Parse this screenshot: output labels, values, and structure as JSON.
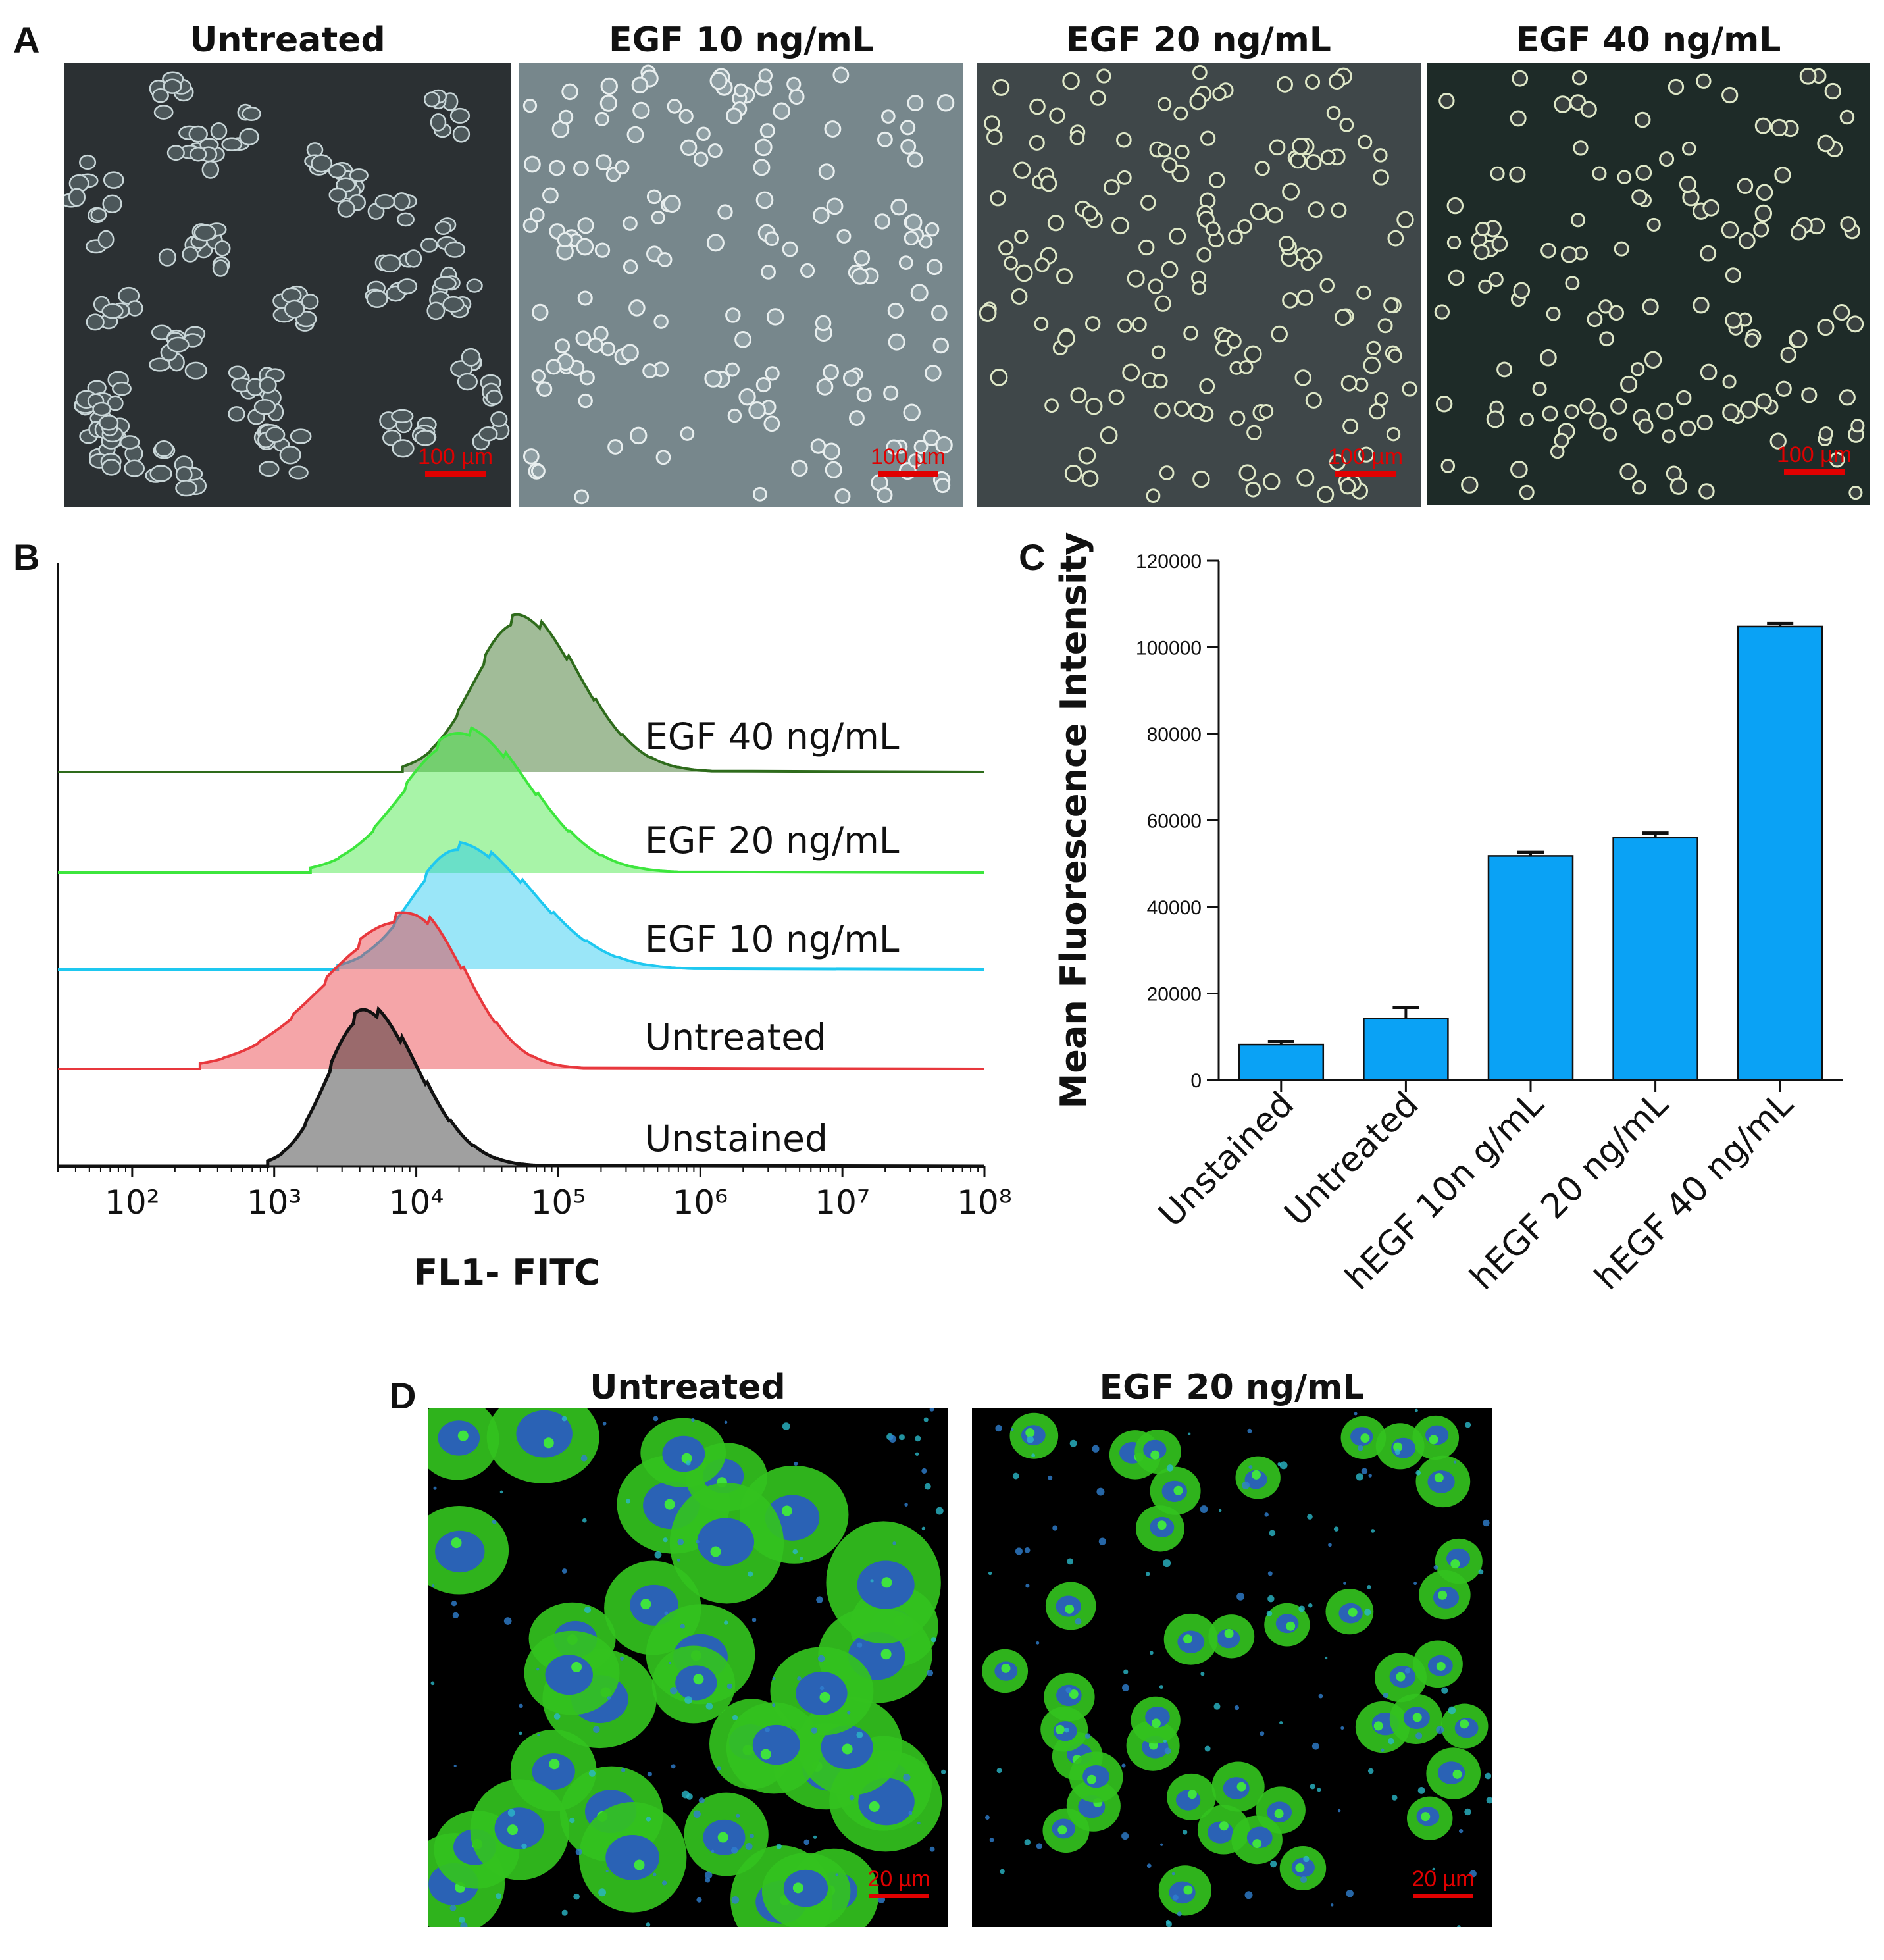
{
  "panels": {
    "a": {
      "letter": "A",
      "scale_bar": "100 µm",
      "images": [
        {
          "title": "Untreated",
          "bg": "#2b3033",
          "cell_style": "epithelial"
        },
        {
          "title": "EGF 10 ng/mL",
          "bg": "#77878c",
          "cell_style": "round"
        },
        {
          "title": "EGF 20 ng/mL",
          "bg": "#3f4749",
          "cell_style": "round"
        },
        {
          "title": "EGF 40 ng/mL",
          "bg": "#1e2b28",
          "cell_style": "round"
        }
      ]
    },
    "b": {
      "letter": "B"
    },
    "c": {
      "letter": "C"
    },
    "d": {
      "letter": "D",
      "scale_bar": "20 µm",
      "images": [
        {
          "title": "Untreated",
          "cell_style": "large"
        },
        {
          "title": "EGF 20 ng/mL",
          "cell_style": "small"
        }
      ]
    }
  },
  "colors": {
    "egf40": "#2e6b1b",
    "egf20": "#3de63d",
    "egf10": "#1ec8f0",
    "untreated": "#e8383d",
    "unstained": "#111111",
    "bar_fill": "#0aa2f5",
    "scale_red": "#e00000",
    "confocal_green": "#33c21e",
    "confocal_blue": "#2a62b5"
  },
  "chart_data": [
    {
      "type": "area",
      "panel": "B",
      "title": "",
      "xlabel": "FL1- FITC",
      "ylabel": "",
      "x_scale": "log",
      "xlim": [
        30,
        100000000
      ],
      "x_tick_labels": [
        "10²",
        "10³",
        "10⁴",
        "10⁵",
        "10⁶",
        "10⁷",
        "10⁸"
      ],
      "x_ticks": [
        100,
        1000,
        10000,
        100000,
        1000000,
        10000000,
        100000000
      ],
      "layout": "offset histograms (stacked overlays)",
      "series": [
        {
          "name": "EGF 40 ng/mL",
          "color_key": "egf40",
          "peak": 55000,
          "range": [
            8000,
            1200000
          ]
        },
        {
          "name": "EGF 20 ng/mL",
          "color_key": "egf20",
          "peak": 22000,
          "range": [
            1800,
            700000
          ]
        },
        {
          "name": "EGF 10 ng/mL",
          "color_key": "egf10",
          "peak": 21000,
          "range": [
            2800,
            900000
          ]
        },
        {
          "name": "Untreated",
          "color_key": "untreated",
          "peak": 9500,
          "range": [
            300,
            150000
          ]
        },
        {
          "name": "Unstained",
          "color_key": "unstained",
          "peak": 4500,
          "range": [
            900,
            70000
          ]
        }
      ]
    },
    {
      "type": "bar",
      "panel": "C",
      "title": "",
      "xlabel": "",
      "ylabel": "Mean Fluorescence Intensity",
      "ylim": [
        0,
        120000
      ],
      "y_ticks": [
        0,
        20000,
        40000,
        60000,
        80000,
        100000,
        120000
      ],
      "categories": [
        "Unstained",
        "Untreated",
        "hEGF 10n g/mL",
        "hEGF 20 ng/mL",
        "hEGF 40 ng/mL"
      ],
      "values": [
        8200,
        14200,
        51800,
        56000,
        104800
      ],
      "errors": [
        700,
        2600,
        800,
        1100,
        700
      ],
      "color_key": "bar_fill"
    }
  ]
}
